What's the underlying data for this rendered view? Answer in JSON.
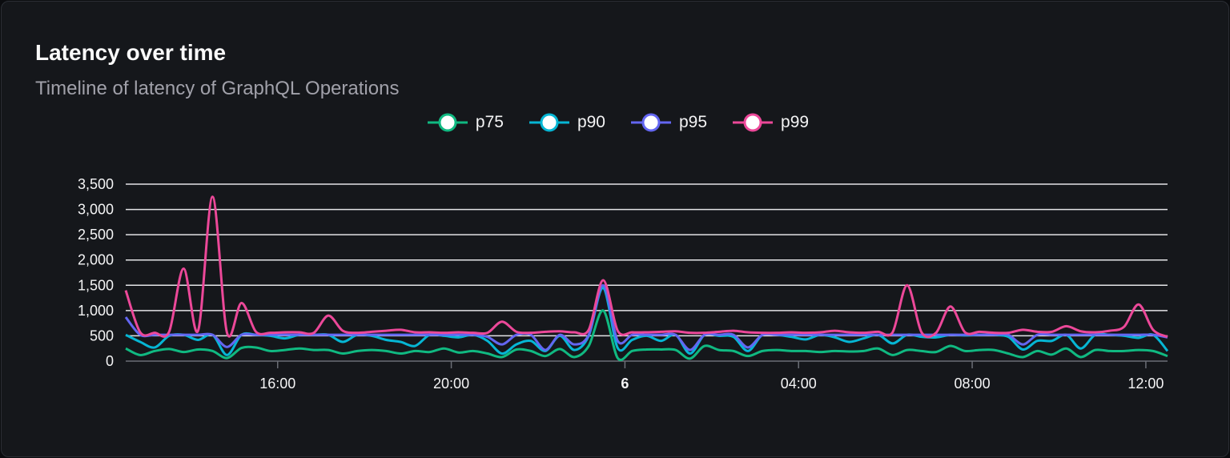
{
  "header": {
    "title": "Latency over time",
    "subtitle": "Timeline of latency of GraphQL Operations"
  },
  "chart_data": {
    "type": "line",
    "title": "Latency over time",
    "subtitle": "Timeline of latency of GraphQL Operations",
    "xlabel": "",
    "ylabel": "",
    "ylim": [
      0,
      3500
    ],
    "yticks": [
      "0",
      "500",
      "1,000",
      "1,500",
      "2,000",
      "2,500",
      "3,000",
      "3,500"
    ],
    "ytick_values": [
      0,
      500,
      1000,
      1500,
      2000,
      2500,
      3000,
      3500
    ],
    "xlim": [
      "12:30",
      "12:30 (next day)"
    ],
    "xticks": [
      {
        "label": "16:00",
        "minute": 210,
        "bold": false
      },
      {
        "label": "20:00",
        "minute": 450,
        "bold": false
      },
      {
        "label": "6",
        "minute": 690,
        "bold": true
      },
      {
        "label": "04:00",
        "minute": 930,
        "bold": false
      },
      {
        "label": "08:00",
        "minute": 1170,
        "bold": false
      },
      {
        "label": "12:00",
        "minute": 1410,
        "bold": false
      }
    ],
    "x_interval_minutes": 20,
    "x_start": "12:30",
    "grid": true,
    "legend": "top-center",
    "series": [
      {
        "name": "p75",
        "color": "#10b981",
        "values": [
          250,
          120,
          200,
          240,
          180,
          230,
          200,
          60,
          260,
          270,
          200,
          220,
          250,
          220,
          220,
          150,
          200,
          220,
          200,
          150,
          200,
          180,
          250,
          170,
          200,
          150,
          80,
          230,
          200,
          100,
          240,
          80,
          300,
          1000,
          60,
          200,
          230,
          230,
          220,
          50,
          300,
          220,
          200,
          100,
          200,
          220,
          200,
          200,
          180,
          200,
          190,
          200,
          250,
          120,
          220,
          200,
          180,
          300,
          200,
          220,
          220,
          150,
          80,
          200,
          130,
          250,
          80,
          220,
          200,
          200,
          220,
          200,
          100
        ]
      },
      {
        "name": "p90",
        "color": "#06b6d4",
        "values": [
          520,
          380,
          270,
          500,
          520,
          420,
          520,
          120,
          520,
          520,
          500,
          450,
          520,
          520,
          520,
          380,
          520,
          500,
          420,
          380,
          300,
          520,
          500,
          470,
          520,
          400,
          150,
          330,
          400,
          200,
          500,
          220,
          500,
          1450,
          260,
          420,
          500,
          400,
          520,
          150,
          520,
          500,
          480,
          200,
          520,
          520,
          480,
          430,
          520,
          470,
          380,
          450,
          520,
          350,
          520,
          480,
          470,
          520,
          510,
          520,
          520,
          480,
          230,
          400,
          400,
          520,
          250,
          520,
          520,
          500,
          460,
          520,
          200
        ]
      },
      {
        "name": "p95",
        "color": "#6366f1",
        "values": [
          870,
          520,
          520,
          520,
          520,
          520,
          520,
          280,
          520,
          520,
          520,
          520,
          520,
          520,
          520,
          520,
          520,
          520,
          520,
          520,
          520,
          520,
          520,
          520,
          520,
          480,
          330,
          520,
          520,
          220,
          520,
          330,
          520,
          1500,
          400,
          520,
          520,
          520,
          520,
          220,
          520,
          520,
          520,
          270,
          520,
          520,
          520,
          520,
          520,
          520,
          520,
          520,
          520,
          520,
          520,
          520,
          520,
          520,
          520,
          520,
          520,
          520,
          330,
          520,
          520,
          520,
          520,
          520,
          520,
          520,
          520,
          520,
          470
        ]
      },
      {
        "name": "p99",
        "color": "#ec4899",
        "values": [
          1400,
          570,
          560,
          580,
          1830,
          600,
          3250,
          560,
          1150,
          580,
          560,
          570,
          570,
          560,
          900,
          600,
          560,
          580,
          600,
          620,
          570,
          570,
          560,
          570,
          560,
          560,
          780,
          580,
          560,
          580,
          590,
          570,
          620,
          1600,
          600,
          570,
          570,
          580,
          590,
          560,
          560,
          580,
          600,
          570,
          560,
          560,
          570,
          560,
          570,
          600,
          570,
          560,
          580,
          570,
          1500,
          570,
          560,
          1080,
          570,
          580,
          560,
          560,
          620,
          580,
          580,
          690,
          590,
          570,
          600,
          680,
          1120,
          620,
          480
        ]
      }
    ]
  }
}
